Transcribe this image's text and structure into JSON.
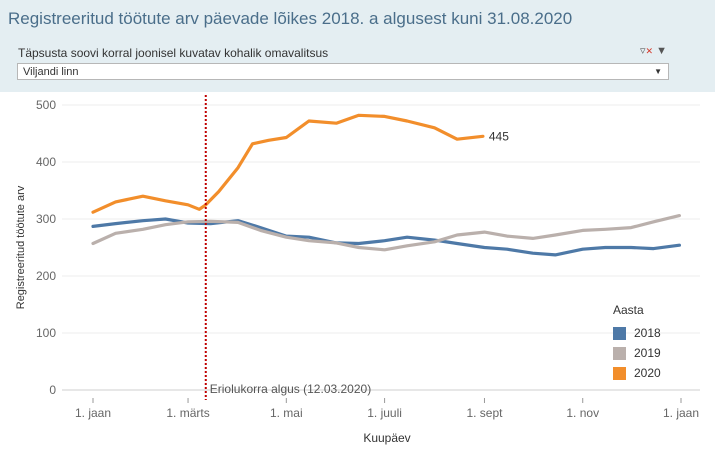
{
  "title": "Registreeritud töötute arv päevade lõikes 2018. a algusest kuni 31.08.2020",
  "filter": {
    "label": "Täpsusta soovi korral  joonisel kuvatav kohalik omavalitsus",
    "selected": "Viljandi linn",
    "clear_icon": "filter-clear-icon",
    "menu_icon": "dropdown-arrow-icon"
  },
  "colors": {
    "2018": "#4e79a7",
    "2019": "#bab0ac",
    "2020": "#f28e2b",
    "ref_line": "#c00000"
  },
  "legend": {
    "title": "Aasta",
    "items": [
      {
        "label": "2018",
        "color": "#4e79a7"
      },
      {
        "label": "2019",
        "color": "#bab0ac"
      },
      {
        "label": "2020",
        "color": "#f28e2b"
      }
    ]
  },
  "chart_data": {
    "type": "line",
    "title": "Registreeritud töötute arv päevade lõikes 2018. a algusest kuni 31.08.2020",
    "xlabel": "Kuupäev",
    "ylabel": "Registreeritud töötute arv",
    "ylim": [
      0,
      500
    ],
    "yticks": [
      0,
      100,
      200,
      300,
      400,
      500
    ],
    "xticks": [
      {
        "label": "1. jaan",
        "x": "01-01"
      },
      {
        "label": "1. märts",
        "x": "03-01"
      },
      {
        "label": "1. mai",
        "x": "05-01"
      },
      {
        "label": "1. juuli",
        "x": "07-01"
      },
      {
        "label": "1. sept",
        "x": "09-01"
      },
      {
        "label": "1. nov",
        "x": "11-01"
      },
      {
        "label": "1. jaan",
        "x": "01-01 (next)"
      }
    ],
    "grid": "horizontal",
    "legend_position": "bottom-right",
    "reference_line": {
      "x": "03-12",
      "label": "Eriolukorra algus (12.03.2020)"
    },
    "end_label": {
      "series": "2020",
      "x": "08-31",
      "value": 445,
      "text": "445"
    },
    "series": [
      {
        "name": "2018",
        "color": "#4e79a7",
        "x": [
          "01-01",
          "01-15",
          "02-01",
          "02-15",
          "03-01",
          "03-15",
          "04-01",
          "04-15",
          "05-01",
          "05-15",
          "06-01",
          "06-15",
          "07-01",
          "07-15",
          "08-01",
          "08-15",
          "09-01",
          "09-15",
          "10-01",
          "10-15",
          "11-01",
          "11-15",
          "12-01",
          "12-15",
          "12-31"
        ],
        "values": [
          287,
          292,
          297,
          300,
          293,
          292,
          297,
          285,
          270,
          268,
          258,
          257,
          262,
          268,
          263,
          257,
          250,
          247,
          240,
          237,
          247,
          250,
          250,
          248,
          254
        ]
      },
      {
        "name": "2019",
        "color": "#bab0ac",
        "x": [
          "01-01",
          "01-15",
          "02-01",
          "02-15",
          "03-01",
          "03-15",
          "04-01",
          "04-15",
          "05-01",
          "05-15",
          "06-01",
          "06-15",
          "07-01",
          "07-15",
          "08-01",
          "08-15",
          "09-01",
          "09-15",
          "10-01",
          "10-15",
          "11-01",
          "11-15",
          "12-01",
          "12-15",
          "12-31"
        ],
        "values": [
          257,
          275,
          282,
          290,
          295,
          296,
          294,
          280,
          268,
          262,
          258,
          250,
          246,
          253,
          260,
          272,
          277,
          270,
          266,
          272,
          280,
          282,
          285,
          295,
          306
        ]
      },
      {
        "name": "2020",
        "color": "#f28e2b",
        "x": [
          "01-01",
          "01-15",
          "02-01",
          "02-15",
          "03-01",
          "03-08",
          "03-12",
          "03-20",
          "04-01",
          "04-10",
          "04-20",
          "05-01",
          "05-15",
          "06-01",
          "06-15",
          "07-01",
          "07-15",
          "08-01",
          "08-15",
          "08-31"
        ],
        "values": [
          312,
          330,
          340,
          332,
          325,
          317,
          325,
          348,
          390,
          432,
          438,
          443,
          472,
          468,
          482,
          480,
          472,
          460,
          440,
          445
        ]
      }
    ]
  }
}
